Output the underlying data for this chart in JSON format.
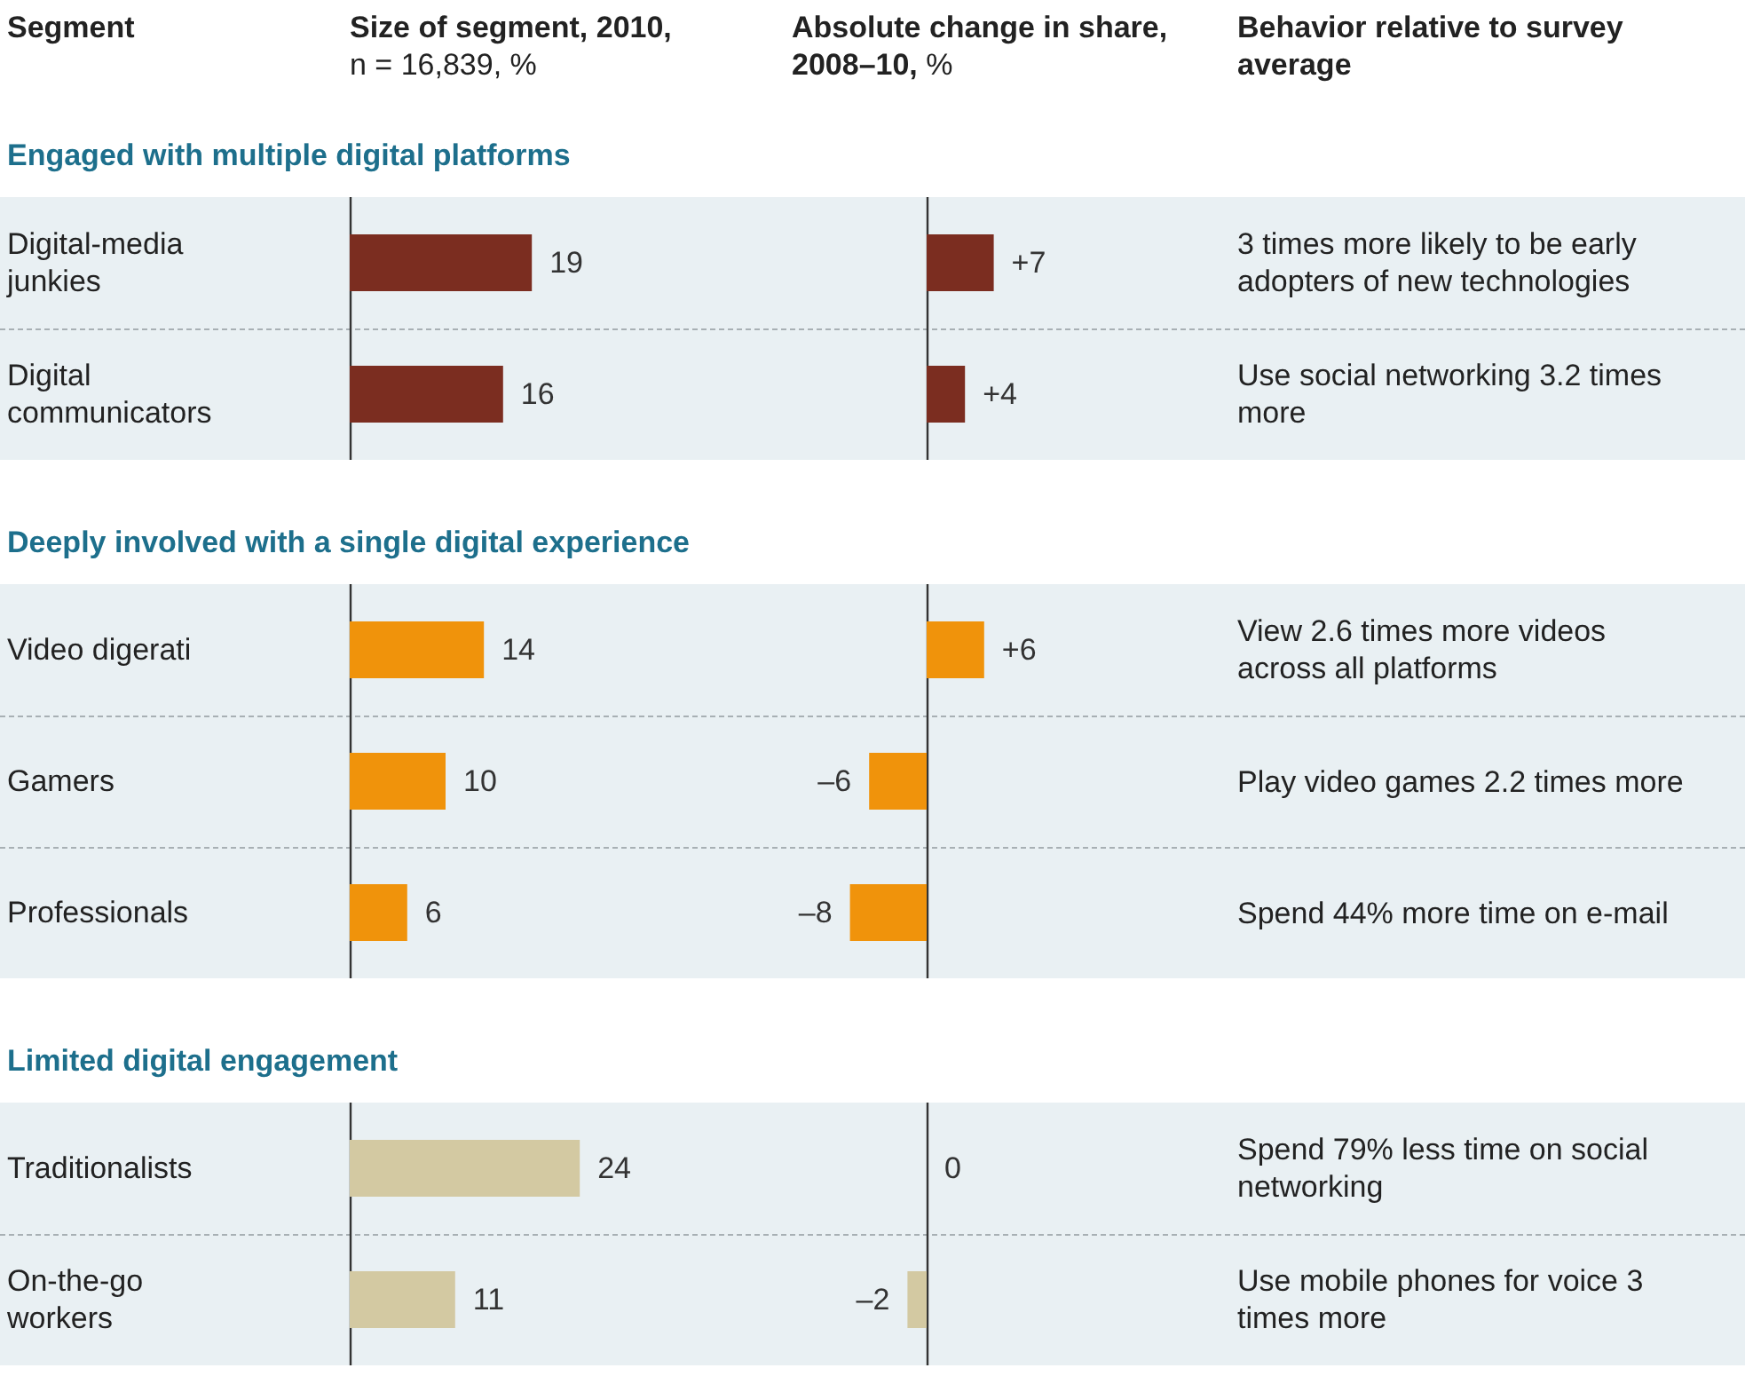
{
  "chart_data": [
    {
      "type": "other",
      "annotations": [
        "Segment",
        "Size of segment, 2010,",
        "n = 16,839, %",
        "Absolute change in share, 2008–10,",
        " %",
        "Behavior relative to survey average"
      ]
    },
    {
      "type": "bar",
      "orientation": "horizontal",
      "title": "Engaged with multiple digital platforms",
      "categories": [
        "Digital-media junkies",
        "Digital communicators"
      ],
      "values": [
        19,
        16
      ],
      "color": "#7b2d20",
      "data_labels": true,
      "tick_labels": "y"
    },
    {
      "type": "bar",
      "orientation": "horizontal",
      "categories": [
        "Digital-media junkies",
        "Digital communicators"
      ],
      "values": [
        7,
        4
      ],
      "value_labels": [
        "+7",
        "+4"
      ],
      "color": "#7b2d20",
      "tick_labels": false,
      "annotations": [
        "3 times more likely to be early adopters of new technologies",
        "Use social networking 3.2 times more"
      ]
    },
    {
      "type": "bar",
      "orientation": "horizontal",
      "title": "Deeply involved with a single digital experience",
      "categories": [
        "Video digerati",
        "Gamers",
        "Professionals"
      ],
      "values": [
        14,
        10,
        6
      ],
      "color": "#f0930b",
      "data_labels": true,
      "tick_labels": "y"
    },
    {
      "type": "bar",
      "orientation": "horizontal",
      "categories": [
        "Video digerati",
        "Gamers",
        "Professionals"
      ],
      "values": [
        6,
        -6,
        -8
      ],
      "value_labels": [
        "+6",
        "–6",
        "–8"
      ],
      "color": "#f0930b",
      "tick_labels": false,
      "annotations": [
        "View 2.6 times more videos across all platforms",
        "Play video games 2.2 times more",
        "Spend 44% more time on e-mail"
      ]
    },
    {
      "type": "bar",
      "orientation": "horizontal",
      "title": "Limited digital engagement",
      "categories": [
        "Traditionalists",
        "On-the-go workers"
      ],
      "values": [
        24,
        11
      ],
      "color": "#d3c9a2",
      "data_labels": true,
      "tick_labels": "y"
    },
    {
      "type": "bar",
      "orientation": "horizontal",
      "categories": [
        "Traditionalists",
        "On-the-go workers"
      ],
      "values": [
        0,
        -2
      ],
      "value_labels": [
        "0",
        "–2"
      ],
      "color": "#d3c9a2",
      "tick_labels": false,
      "annotations": [
        "Spend 79% less time on social networking",
        "Use mobile phones for voice 3 times more"
      ]
    }
  ]
}
